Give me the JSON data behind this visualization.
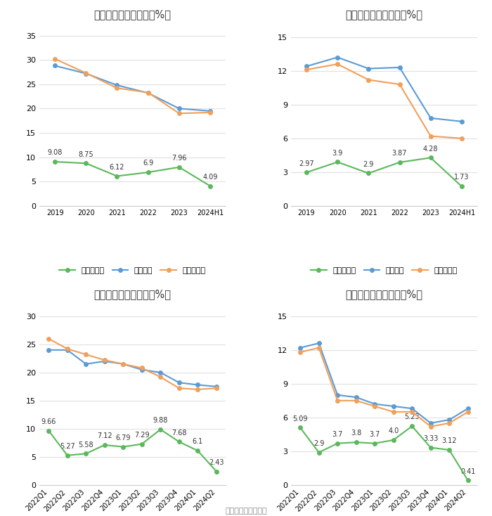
{
  "top_left": {
    "title": "历年毛利率变化情况（%）",
    "x_labels": [
      "2019",
      "2020",
      "2021",
      "2022",
      "2023",
      "2024H1"
    ],
    "company": [
      9.08,
      8.75,
      6.12,
      6.9,
      7.96,
      4.09
    ],
    "industry_avg": [
      28.8,
      27.2,
      24.8,
      23.2,
      20.0,
      19.5
    ],
    "industry_median": [
      30.2,
      27.3,
      24.2,
      23.3,
      19.0,
      19.2
    ],
    "ylim": [
      0,
      37
    ],
    "yticks": [
      0,
      5,
      10,
      15,
      20,
      25,
      30,
      35
    ]
  },
  "top_right": {
    "title": "历年净利率变化情况（%）",
    "x_labels": [
      "2019",
      "2020",
      "2021",
      "2022",
      "2023",
      "2024H1"
    ],
    "company": [
      2.97,
      3.9,
      2.9,
      3.87,
      4.28,
      1.73
    ],
    "industry_avg": [
      12.4,
      13.2,
      12.2,
      12.3,
      7.8,
      7.5
    ],
    "industry_median": [
      12.1,
      12.6,
      11.2,
      10.8,
      6.2,
      6.0
    ],
    "ylim": [
      0,
      16
    ],
    "yticks": [
      0,
      3,
      6,
      9,
      12,
      15
    ]
  },
  "bottom_left": {
    "title": "季度毛利率变化情况（%）",
    "x_labels": [
      "2022Q1",
      "2022Q2",
      "2022Q3",
      "2022Q4",
      "2023Q1",
      "2023Q2",
      "2023Q3",
      "2023Q4",
      "2024Q1",
      "2024Q2"
    ],
    "company": [
      9.66,
      5.27,
      5.58,
      7.12,
      6.79,
      7.29,
      9.88,
      7.68,
      6.1,
      2.43
    ],
    "industry_avg": [
      24.0,
      24.0,
      21.5,
      22.0,
      21.5,
      20.5,
      20.0,
      18.2,
      17.8,
      17.5
    ],
    "industry_median": [
      26.0,
      24.2,
      23.2,
      22.2,
      21.5,
      20.8,
      19.2,
      17.2,
      17.0,
      17.2
    ],
    "ylim": [
      0,
      32
    ],
    "yticks": [
      0,
      5,
      10,
      15,
      20,
      25,
      30
    ]
  },
  "bottom_right": {
    "title": "季度净利率变化情况（%）",
    "x_labels": [
      "2022Q1",
      "2022Q2",
      "2022Q3",
      "2022Q4",
      "2023Q1",
      "2023Q2",
      "2023Q3",
      "2023Q4",
      "2024Q1",
      "2024Q2"
    ],
    "company": [
      5.09,
      2.9,
      3.7,
      3.8,
      3.7,
      4.0,
      5.23,
      3.33,
      3.12,
      0.41
    ],
    "industry_avg": [
      12.2,
      12.6,
      8.0,
      7.8,
      7.2,
      7.0,
      6.8,
      5.5,
      5.8,
      6.8
    ],
    "industry_median": [
      11.8,
      12.2,
      7.5,
      7.5,
      7.0,
      6.5,
      6.5,
      5.2,
      5.5,
      6.5
    ],
    "ylim": [
      0,
      16
    ],
    "yticks": [
      0,
      3,
      6,
      9,
      12,
      15
    ]
  },
  "colors": {
    "company": "#5cb85c",
    "industry_avg": "#5b9bd5",
    "industry_median": "#f0a05a"
  },
  "legend_labels": {
    "company_gross": "公司毛利率",
    "company_net": "公司净利率",
    "industry_avg": "行业均值",
    "industry_median": "行业中位数"
  },
  "source": "数据来源：恒生聚源",
  "background": "#ffffff",
  "grid_color": "#e0e0e0"
}
